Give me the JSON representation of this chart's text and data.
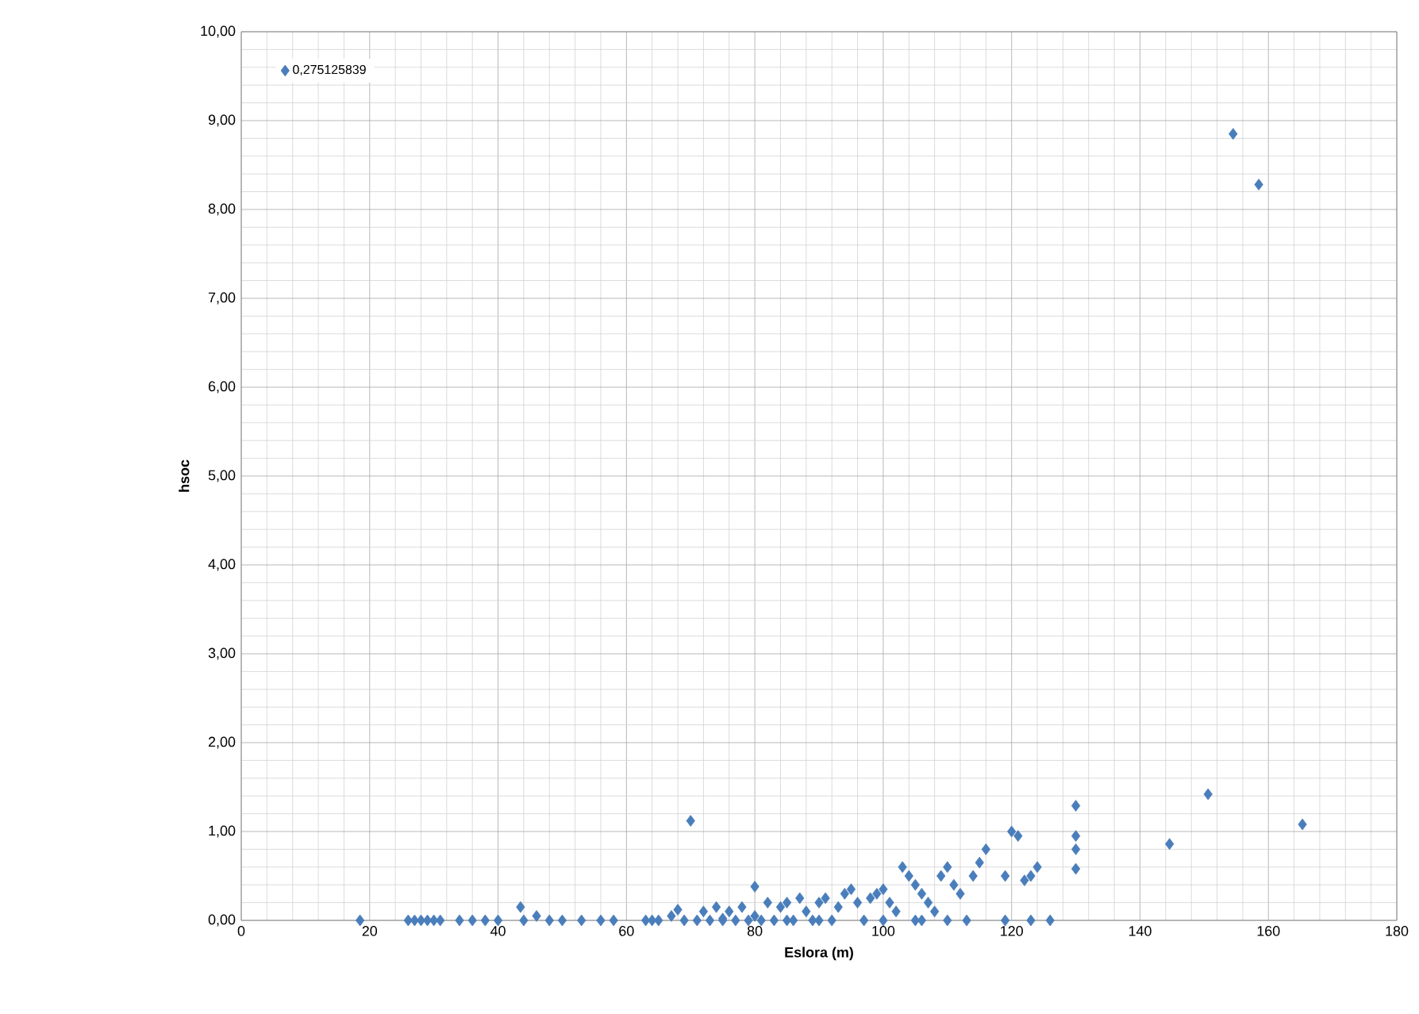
{
  "chart_data": {
    "type": "scatter",
    "xlabel": "Eslora (m)",
    "ylabel": "hsoc",
    "xlim": [
      0,
      180
    ],
    "xticks": [
      0,
      20,
      40,
      60,
      80,
      100,
      120,
      140,
      160,
      180
    ],
    "ylim": [
      0,
      10
    ],
    "yticks": [
      {
        "value": 0,
        "label": "0,00"
      },
      {
        "value": 1,
        "label": "1,00"
      },
      {
        "value": 2,
        "label": "2,00"
      },
      {
        "value": 3,
        "label": "3,00"
      },
      {
        "value": 4,
        "label": "4,00"
      },
      {
        "value": 5,
        "label": "5,00"
      },
      {
        "value": 6,
        "label": "6,00"
      },
      {
        "value": 7,
        "label": "7,00"
      },
      {
        "value": 8,
        "label": "8,00"
      },
      {
        "value": 9,
        "label": "9,00"
      },
      {
        "value": 10,
        "label": "10,00"
      }
    ],
    "grid": true,
    "legend": "top left",
    "marker": "diamond",
    "series": [
      {
        "name": "0,275125839",
        "color": "#4a7ebb",
        "x": [
          18.5,
          26,
          27,
          28,
          29,
          30,
          31,
          34,
          36,
          38,
          40,
          43.5,
          44,
          46,
          48,
          50,
          53,
          56,
          58,
          63,
          64,
          65,
          67,
          68,
          69,
          70,
          71,
          72,
          73,
          74,
          75,
          75,
          76,
          77,
          78,
          79,
          80,
          80,
          81,
          82,
          83,
          84,
          85,
          85,
          86,
          87,
          88,
          89,
          90,
          90,
          91,
          92,
          93,
          94,
          95,
          96,
          97,
          98,
          99,
          100,
          100,
          101,
          102,
          103,
          104,
          105,
          105,
          106,
          106,
          107,
          108,
          109,
          110,
          110,
          111,
          112,
          113,
          114,
          115,
          116,
          119,
          119,
          120,
          121,
          122,
          123,
          123,
          124,
          126,
          130,
          130,
          130,
          130,
          144.6,
          150.6,
          154.5,
          158.5,
          165.3
        ],
        "values": [
          0,
          0,
          0,
          0,
          0,
          0,
          0,
          0,
          0,
          0,
          0,
          0.15,
          0,
          0.05,
          0,
          0,
          0,
          0,
          0,
          0,
          0,
          0,
          0.05,
          0.12,
          0,
          1.12,
          0,
          0.1,
          0,
          0.15,
          0.02,
          0,
          0.1,
          0,
          0.15,
          0,
          0.38,
          0.05,
          0,
          0.2,
          0,
          0.15,
          0.2,
          0,
          0,
          0.25,
          0.1,
          0,
          0.2,
          0,
          0.25,
          0,
          0.15,
          0.3,
          0.35,
          0.2,
          0,
          0.25,
          0.3,
          0.35,
          0,
          0.2,
          0.1,
          0.6,
          0.5,
          0.4,
          0,
          0.3,
          0,
          0.2,
          0.1,
          0.5,
          0.6,
          0,
          0.4,
          0.3,
          0,
          0.5,
          0.65,
          0.8,
          0,
          0.5,
          1.0,
          0.95,
          0.45,
          0.5,
          0,
          0.6,
          0,
          1.29,
          0.95,
          0.8,
          0.58,
          0.86,
          1.42,
          8.85,
          8.28,
          1.08
        ]
      }
    ]
  }
}
